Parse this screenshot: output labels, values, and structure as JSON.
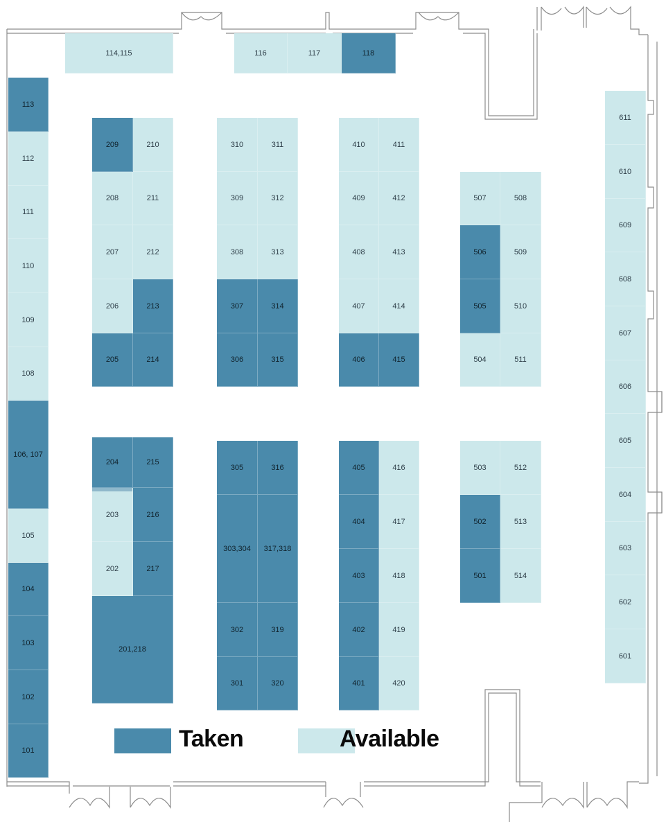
{
  "colors": {
    "taken": "#4a8aab",
    "available": "#cce8eb",
    "walls": "#8c8c8c"
  },
  "legend": {
    "taken": "Taken",
    "available": "Available"
  },
  "booths": {
    "b114_115": {
      "label": "114,115",
      "status": "available"
    },
    "b116": {
      "label": "116",
      "status": "available"
    },
    "b117": {
      "label": "117",
      "status": "available"
    },
    "b118": {
      "label": "118",
      "status": "taken"
    },
    "b113": {
      "label": "113",
      "status": "taken"
    },
    "b112": {
      "label": "112",
      "status": "available"
    },
    "b111": {
      "label": "111",
      "status": "available"
    },
    "b110": {
      "label": "110",
      "status": "available"
    },
    "b109": {
      "label": "109",
      "status": "available"
    },
    "b108": {
      "label": "108",
      "status": "available"
    },
    "b106_107": {
      "label": "106, 107",
      "status": "taken"
    },
    "b105": {
      "label": "105",
      "status": "available"
    },
    "b104": {
      "label": "104",
      "status": "taken"
    },
    "b103": {
      "label": "103",
      "status": "taken"
    },
    "b102": {
      "label": "102",
      "status": "taken"
    },
    "b101": {
      "label": "101",
      "status": "taken"
    },
    "b209": {
      "label": "209",
      "status": "taken"
    },
    "b210": {
      "label": "210",
      "status": "available"
    },
    "b208": {
      "label": "208",
      "status": "available"
    },
    "b211": {
      "label": "211",
      "status": "available"
    },
    "b207": {
      "label": "207",
      "status": "available"
    },
    "b212": {
      "label": "212",
      "status": "available"
    },
    "b206": {
      "label": "206",
      "status": "available"
    },
    "b213": {
      "label": "213",
      "status": "taken"
    },
    "b205": {
      "label": "205",
      "status": "taken"
    },
    "b214": {
      "label": "214",
      "status": "taken"
    },
    "b204": {
      "label": "204",
      "status": "taken"
    },
    "b215": {
      "label": "215",
      "status": "taken"
    },
    "b203": {
      "label": "203",
      "status": "available"
    },
    "b216": {
      "label": "216",
      "status": "taken"
    },
    "b202": {
      "label": "202",
      "status": "available"
    },
    "b217": {
      "label": "217",
      "status": "taken"
    },
    "b201_218": {
      "label": "201,218",
      "status": "taken"
    },
    "b310": {
      "label": "310",
      "status": "available"
    },
    "b311": {
      "label": "311",
      "status": "available"
    },
    "b309": {
      "label": "309",
      "status": "available"
    },
    "b312": {
      "label": "312",
      "status": "available"
    },
    "b308": {
      "label": "308",
      "status": "available"
    },
    "b313": {
      "label": "313",
      "status": "available"
    },
    "b307": {
      "label": "307",
      "status": "taken"
    },
    "b314": {
      "label": "314",
      "status": "taken"
    },
    "b306": {
      "label": "306",
      "status": "taken"
    },
    "b315": {
      "label": "315",
      "status": "taken"
    },
    "b305": {
      "label": "305",
      "status": "taken"
    },
    "b316": {
      "label": "316",
      "status": "taken"
    },
    "b303_304": {
      "label": "303,304",
      "status": "taken"
    },
    "b317_318": {
      "label": "317,318",
      "status": "taken"
    },
    "b302": {
      "label": "302",
      "status": "taken"
    },
    "b319": {
      "label": "319",
      "status": "taken"
    },
    "b301": {
      "label": "301",
      "status": "taken"
    },
    "b320": {
      "label": "320",
      "status": "taken"
    },
    "b410": {
      "label": "410",
      "status": "available"
    },
    "b411": {
      "label": "411",
      "status": "available"
    },
    "b409": {
      "label": "409",
      "status": "available"
    },
    "b412": {
      "label": "412",
      "status": "available"
    },
    "b408": {
      "label": "408",
      "status": "available"
    },
    "b413": {
      "label": "413",
      "status": "available"
    },
    "b407": {
      "label": "407",
      "status": "available"
    },
    "b414": {
      "label": "414",
      "status": "available"
    },
    "b406": {
      "label": "406",
      "status": "taken"
    },
    "b415": {
      "label": "415",
      "status": "taken"
    },
    "b405": {
      "label": "405",
      "status": "taken"
    },
    "b416": {
      "label": "416",
      "status": "available"
    },
    "b404": {
      "label": "404",
      "status": "taken"
    },
    "b417": {
      "label": "417",
      "status": "available"
    },
    "b403": {
      "label": "403",
      "status": "taken"
    },
    "b418": {
      "label": "418",
      "status": "available"
    },
    "b402": {
      "label": "402",
      "status": "taken"
    },
    "b419": {
      "label": "419",
      "status": "available"
    },
    "b401": {
      "label": "401",
      "status": "taken"
    },
    "b420": {
      "label": "420",
      "status": "available"
    },
    "b507": {
      "label": "507",
      "status": "available"
    },
    "b508": {
      "label": "508",
      "status": "available"
    },
    "b506": {
      "label": "506",
      "status": "taken"
    },
    "b509": {
      "label": "509",
      "status": "available"
    },
    "b505": {
      "label": "505",
      "status": "taken"
    },
    "b510": {
      "label": "510",
      "status": "available"
    },
    "b504": {
      "label": "504",
      "status": "available"
    },
    "b511": {
      "label": "511",
      "status": "available"
    },
    "b503": {
      "label": "503",
      "status": "available"
    },
    "b512": {
      "label": "512",
      "status": "available"
    },
    "b502": {
      "label": "502",
      "status": "taken"
    },
    "b513": {
      "label": "513",
      "status": "available"
    },
    "b501": {
      "label": "501",
      "status": "taken"
    },
    "b514": {
      "label": "514",
      "status": "available"
    },
    "b611": {
      "label": "611",
      "status": "available"
    },
    "b610": {
      "label": "610",
      "status": "available"
    },
    "b609": {
      "label": "609",
      "status": "available"
    },
    "b608": {
      "label": "608",
      "status": "available"
    },
    "b607": {
      "label": "607",
      "status": "available"
    },
    "b606": {
      "label": "606",
      "status": "available"
    },
    "b605": {
      "label": "605",
      "status": "available"
    },
    "b604": {
      "label": "604",
      "status": "available"
    },
    "b603": {
      "label": "603",
      "status": "available"
    },
    "b602": {
      "label": "602",
      "status": "available"
    },
    "b601": {
      "label": "601",
      "status": "available"
    }
  }
}
